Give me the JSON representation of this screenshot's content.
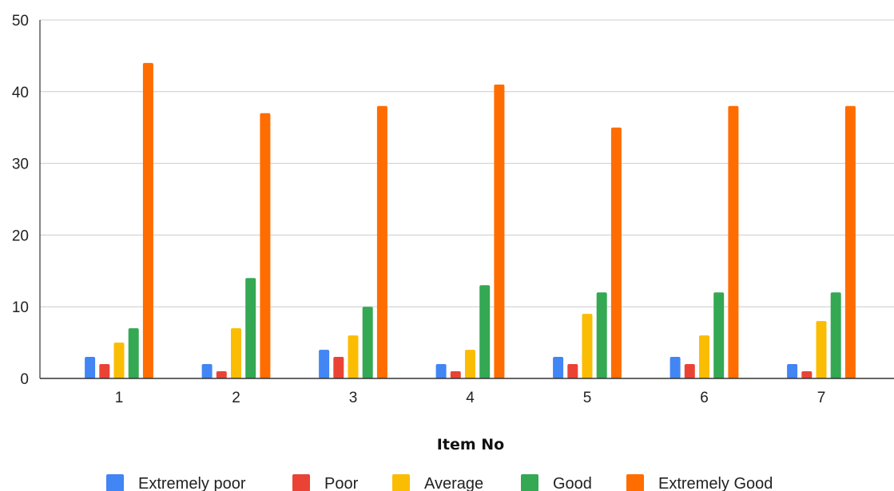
{
  "chart_data": {
    "type": "bar",
    "title": "",
    "xlabel": "Item No",
    "ylabel": "",
    "ylim": [
      0,
      50
    ],
    "yticks": [
      0,
      10,
      20,
      30,
      40,
      50
    ],
    "grid": true,
    "legend_position": "bottom",
    "categories": [
      "1",
      "2",
      "3",
      "4",
      "5",
      "6",
      "7"
    ],
    "series": [
      {
        "name": "Extremely poor",
        "color": "#4285F4",
        "values": [
          3,
          2,
          4,
          2,
          3,
          3,
          2
        ]
      },
      {
        "name": "Poor",
        "color": "#EA4335",
        "values": [
          2,
          1,
          3,
          1,
          2,
          2,
          1
        ]
      },
      {
        "name": "Average",
        "color": "#FBBC04",
        "values": [
          5,
          7,
          6,
          4,
          9,
          6,
          8
        ]
      },
      {
        "name": "Good",
        "color": "#34A853",
        "values": [
          7,
          14,
          10,
          13,
          12,
          12,
          12
        ]
      },
      {
        "name": "Extremely Good",
        "color": "#FF6D01",
        "values": [
          44,
          37,
          38,
          41,
          35,
          38,
          38
        ]
      }
    ]
  }
}
